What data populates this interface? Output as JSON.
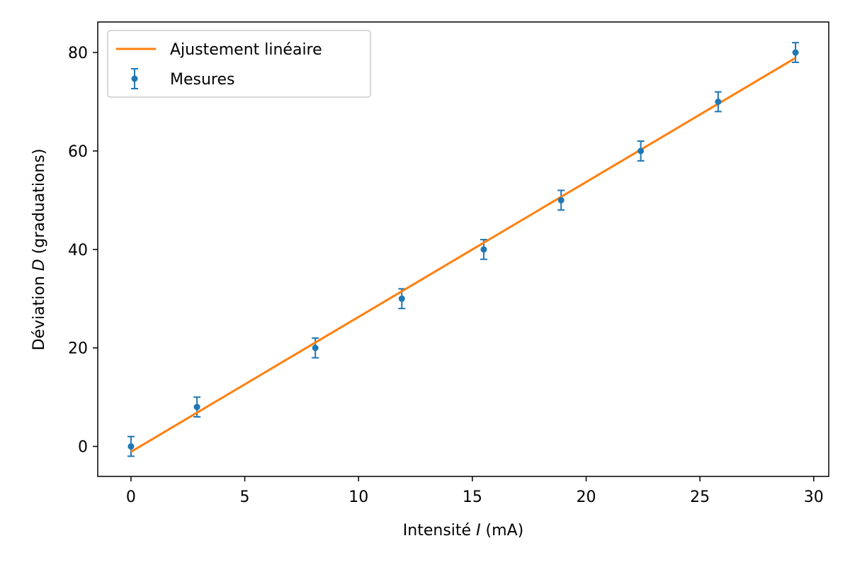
{
  "chart_data": {
    "type": "scatter",
    "title": "",
    "xlabel": {
      "before": "Intensité ",
      "variable": "I",
      "after": " (mA)"
    },
    "ylabel": {
      "before": "Déviation ",
      "variable": "D",
      "after": " (graduations)"
    },
    "xlim": [
      -1.46,
      30.66
    ],
    "ylim": [
      -6.1,
      86.2
    ],
    "xticks": [
      0,
      5,
      10,
      15,
      20,
      25,
      30
    ],
    "yticks": [
      0,
      20,
      40,
      60,
      80
    ],
    "grid": false,
    "legend_position": "top-left",
    "series": [
      {
        "name": "Ajustement linéaire",
        "kind": "line",
        "color": "#ff7f0e",
        "x": [
          0,
          29.2
        ],
        "y": [
          -1.1,
          78.9
        ]
      },
      {
        "name": "Mesures",
        "kind": "errorbar",
        "color": "#1f77b4",
        "x": [
          0,
          2.9,
          8.1,
          11.9,
          15.5,
          18.9,
          22.4,
          25.8,
          29.2
        ],
        "y": [
          0,
          8,
          20,
          30,
          40,
          50,
          60,
          70,
          80
        ],
        "yerr": 2
      }
    ]
  }
}
